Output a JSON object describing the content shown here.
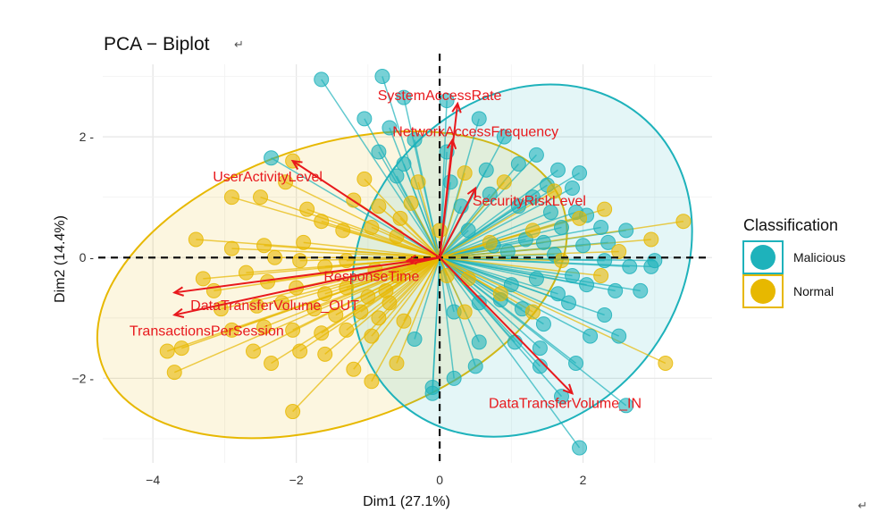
{
  "chart_data": {
    "type": "scatter",
    "title": "PCA − Biplot",
    "title_mark": "↵",
    "corner_mark": "↵",
    "xlabel": "Dim1 (27.1%)",
    "ylabel": "Dim2 (14.4%)",
    "xlim": [
      -4.7,
      3.8
    ],
    "ylim": [
      -3.4,
      3.2
    ],
    "xticks": [
      -4,
      -2,
      0,
      2
    ],
    "yticks": [
      -2,
      0,
      2
    ],
    "xtick_labels": [
      "−4",
      "−2",
      "0",
      "2"
    ],
    "ytick_labels": [
      "−2",
      "0",
      "2"
    ],
    "grid": true,
    "legend": {
      "title": "Classification",
      "position": "right",
      "entries": [
        {
          "label": "Malicious",
          "color": "#1eb2bb"
        },
        {
          "label": "Normal",
          "color": "#e7b800"
        }
      ]
    },
    "ellipses": [
      {
        "series": "Normal",
        "cx": -1.5,
        "cy": -0.45,
        "rx": 3.4,
        "ry": 2.3,
        "angle_deg": -19
      },
      {
        "series": "Malicious",
        "cx": 1.15,
        "cy": -0.05,
        "rx": 2.2,
        "ry": 3.1,
        "angle_deg": 39
      }
    ],
    "variables": [
      {
        "name": "SystemAccessRate",
        "x": 0.25,
        "y": 2.55,
        "lx": 0.0,
        "ly": 2.7
      },
      {
        "name": "NetworkAccessFrequency",
        "x": 0.18,
        "y": 1.95,
        "lx": 0.5,
        "ly": 2.1
      },
      {
        "name": "UserActivityLevel",
        "x": -2.05,
        "y": 1.6,
        "lx": -2.4,
        "ly": 1.35
      },
      {
        "name": "SecurityRiskLevel",
        "x": 0.5,
        "y": 1.15,
        "lx": 1.25,
        "ly": 0.95
      },
      {
        "name": "ResponseTime",
        "x": -0.45,
        "y": -0.05,
        "lx": -0.95,
        "ly": -0.3
      },
      {
        "name": "DataTransferVolume_OUT",
        "x": -3.7,
        "y": -0.58,
        "lx": -2.3,
        "ly": -0.78
      },
      {
        "name": "TransactionsPerSession",
        "x": -3.7,
        "y": -0.95,
        "lx": -3.25,
        "ly": -1.2
      },
      {
        "name": "DataTransferVolume_IN",
        "x": 1.85,
        "y": -2.25,
        "lx": 1.75,
        "ly": -2.4
      }
    ],
    "series": [
      {
        "name": "Malicious",
        "color": "#1eb2bb",
        "points": [
          [
            -1.65,
            2.95
          ],
          [
            -0.8,
            3.0
          ],
          [
            -0.5,
            2.65
          ],
          [
            0.1,
            2.6
          ],
          [
            -1.05,
            2.3
          ],
          [
            -0.7,
            2.15
          ],
          [
            0.55,
            2.3
          ],
          [
            0.9,
            2.0
          ],
          [
            1.35,
            1.7
          ],
          [
            -0.85,
            1.75
          ],
          [
            -0.35,
            1.95
          ],
          [
            0.1,
            1.75
          ],
          [
            0.65,
            1.45
          ],
          [
            1.95,
            1.4
          ],
          [
            1.5,
            1.2
          ],
          [
            1.85,
            1.15
          ],
          [
            -2.35,
            1.65
          ],
          [
            1.3,
            1.0
          ],
          [
            1.1,
            0.85
          ],
          [
            1.55,
            0.75
          ],
          [
            1.9,
            0.75
          ],
          [
            2.05,
            0.7
          ],
          [
            1.7,
            0.5
          ],
          [
            2.25,
            0.5
          ],
          [
            2.6,
            0.45
          ],
          [
            1.2,
            0.3
          ],
          [
            1.45,
            0.25
          ],
          [
            2.0,
            0.2
          ],
          [
            2.35,
            0.25
          ],
          [
            0.4,
            0.45
          ],
          [
            0.75,
            0.2
          ],
          [
            0.95,
            0.1
          ],
          [
            1.6,
            0.05
          ],
          [
            2.3,
            -0.05
          ],
          [
            2.95,
            -0.15
          ],
          [
            2.65,
            -0.15
          ],
          [
            1.85,
            -0.3
          ],
          [
            1.35,
            -0.35
          ],
          [
            1.0,
            -0.45
          ],
          [
            2.05,
            -0.45
          ],
          [
            2.45,
            -0.55
          ],
          [
            1.65,
            -0.6
          ],
          [
            0.85,
            -0.7
          ],
          [
            1.15,
            -0.85
          ],
          [
            1.8,
            -0.75
          ],
          [
            2.3,
            -0.95
          ],
          [
            2.5,
            -1.3
          ],
          [
            1.45,
            -1.1
          ],
          [
            1.05,
            -1.4
          ],
          [
            0.55,
            -1.4
          ],
          [
            2.1,
            -1.3
          ],
          [
            1.4,
            -1.5
          ],
          [
            1.9,
            -1.75
          ],
          [
            0.5,
            -1.8
          ],
          [
            1.4,
            -1.8
          ],
          [
            0.2,
            -2.0
          ],
          [
            -0.1,
            -2.15
          ],
          [
            2.6,
            -2.45
          ],
          [
            1.95,
            -3.15
          ],
          [
            -0.1,
            -2.25
          ],
          [
            -0.35,
            -1.35
          ],
          [
            0.2,
            -0.9
          ],
          [
            0.55,
            -0.75
          ],
          [
            1.7,
            -2.3
          ],
          [
            3.0,
            -0.05
          ],
          [
            2.8,
            -0.55
          ],
          [
            0.3,
            0.85
          ],
          [
            -0.5,
            1.55
          ],
          [
            0.15,
            1.25
          ],
          [
            1.1,
            1.55
          ],
          [
            1.65,
            1.45
          ],
          [
            -0.6,
            1.35
          ],
          [
            0.7,
            1.05
          ]
        ]
      },
      {
        "name": "Normal",
        "color": "#e7b800",
        "points": [
          [
            -2.05,
            1.6
          ],
          [
            -2.9,
            1.0
          ],
          [
            -2.5,
            1.0
          ],
          [
            -1.85,
            0.8
          ],
          [
            -1.2,
            0.95
          ],
          [
            -0.85,
            0.85
          ],
          [
            -0.55,
            0.65
          ],
          [
            -1.65,
            0.6
          ],
          [
            -1.35,
            0.45
          ],
          [
            -0.95,
            0.5
          ],
          [
            -0.6,
            0.35
          ],
          [
            -1.9,
            0.25
          ],
          [
            -2.45,
            0.2
          ],
          [
            -2.9,
            0.15
          ],
          [
            -3.4,
            0.3
          ],
          [
            -2.3,
            0.0
          ],
          [
            -1.95,
            -0.05
          ],
          [
            -1.6,
            -0.15
          ],
          [
            -1.3,
            -0.05
          ],
          [
            -0.9,
            -0.2
          ],
          [
            -0.6,
            -0.3
          ],
          [
            -2.7,
            -0.25
          ],
          [
            -2.4,
            -0.4
          ],
          [
            -2.0,
            -0.5
          ],
          [
            -1.6,
            -0.6
          ],
          [
            -1.3,
            -0.5
          ],
          [
            -1.0,
            -0.65
          ],
          [
            -0.7,
            -0.75
          ],
          [
            -3.15,
            -0.55
          ],
          [
            -3.05,
            -0.85
          ],
          [
            -2.55,
            -0.8
          ],
          [
            -2.2,
            -0.75
          ],
          [
            -1.75,
            -0.85
          ],
          [
            -1.45,
            -0.95
          ],
          [
            -1.1,
            -0.9
          ],
          [
            -0.85,
            -1.0
          ],
          [
            -0.5,
            -1.05
          ],
          [
            -2.9,
            -1.2
          ],
          [
            -2.45,
            -1.15
          ],
          [
            -2.05,
            -1.2
          ],
          [
            -1.65,
            -1.25
          ],
          [
            -1.3,
            -1.2
          ],
          [
            -0.95,
            -1.3
          ],
          [
            -3.6,
            -1.5
          ],
          [
            -3.8,
            -1.55
          ],
          [
            -2.6,
            -1.55
          ],
          [
            -2.35,
            -1.75
          ],
          [
            -1.95,
            -1.55
          ],
          [
            -1.6,
            -1.6
          ],
          [
            -1.2,
            -1.85
          ],
          [
            -3.7,
            -1.9
          ],
          [
            -2.05,
            -2.55
          ],
          [
            -0.95,
            -2.05
          ],
          [
            -0.6,
            -1.75
          ],
          [
            0.1,
            -0.3
          ],
          [
            0.35,
            -0.9
          ],
          [
            3.4,
            0.6
          ],
          [
            3.15,
            -1.75
          ],
          [
            0.7,
            0.25
          ],
          [
            1.3,
            0.45
          ],
          [
            1.95,
            0.65
          ],
          [
            2.3,
            0.8
          ],
          [
            1.7,
            -0.05
          ],
          [
            2.5,
            0.1
          ],
          [
            2.25,
            -0.3
          ],
          [
            2.95,
            0.3
          ],
          [
            -0.3,
            1.25
          ],
          [
            0.35,
            1.4
          ],
          [
            0.9,
            1.25
          ],
          [
            1.6,
            1.1
          ],
          [
            -1.05,
            1.3
          ],
          [
            -0.4,
            0.9
          ],
          [
            0.0,
            0.45
          ],
          [
            -0.35,
            -0.1
          ],
          [
            0.4,
            -0.35
          ],
          [
            0.85,
            -0.6
          ],
          [
            1.3,
            -0.9
          ],
          [
            -3.3,
            -0.35
          ],
          [
            -2.15,
            1.25
          ],
          [
            -0.75,
            -0.55
          ]
        ]
      }
    ]
  }
}
